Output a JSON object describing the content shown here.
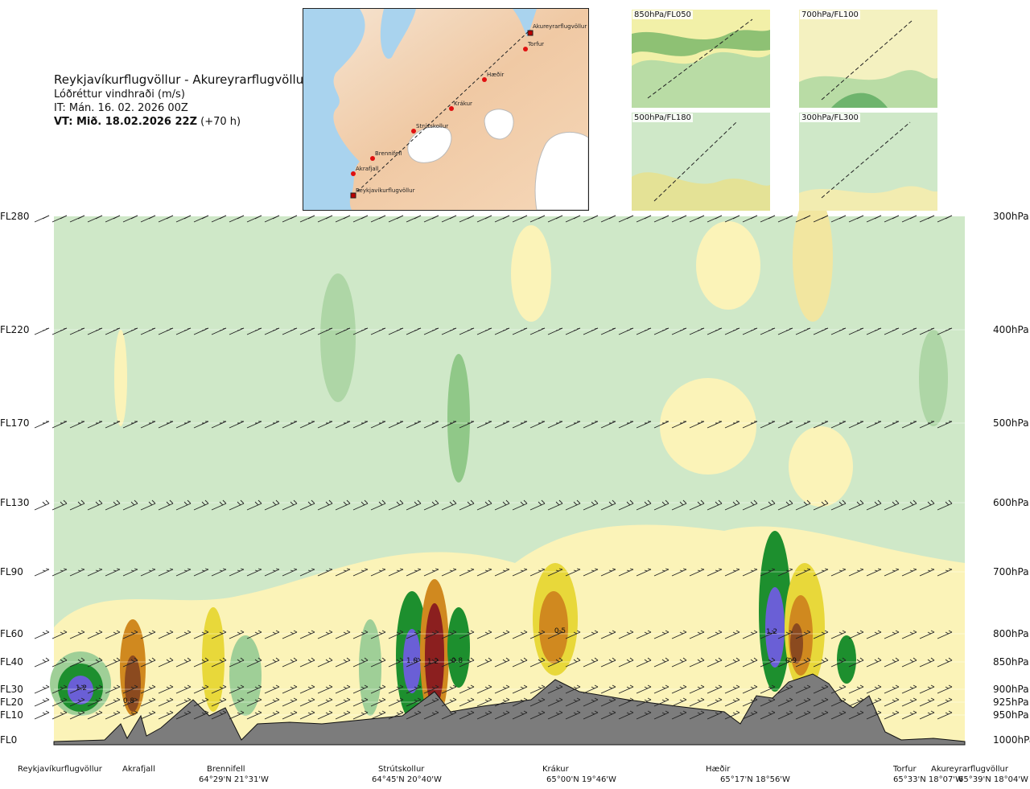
{
  "header": {
    "route_title": "Reykjavíkurflugvöllur - Akureyrarflugvöllur",
    "parameter": "Lóðréttur vindhraði (m/s)",
    "issue_time": "IT: Mán. 16. 02. 2026 00Z",
    "valid_prefix": "VT: Mið. 18.02.2026 22Z",
    "valid_suffix": " (+70 h)"
  },
  "route_map": {
    "points": [
      {
        "name": "Akureyrarflugvöllur"
      },
      {
        "name": "Torfur"
      },
      {
        "name": "Hæðir"
      },
      {
        "name": "Krákur"
      },
      {
        "name": "Strútskollur"
      },
      {
        "name": "Brennifell"
      },
      {
        "name": "Akrafjall"
      },
      {
        "name": "Reykjavíkurflugvöllur"
      }
    ]
  },
  "mini_maps": [
    {
      "label": "850hPa/FL050"
    },
    {
      "label": "700hPa/FL100"
    },
    {
      "label": "500hPa/FL180"
    },
    {
      "label": "300hPa/FL300"
    }
  ],
  "levels": [
    {
      "fl": "FL280",
      "hpa": "300hPa"
    },
    {
      "fl": "FL220",
      "hpa": "400hPa"
    },
    {
      "fl": "FL170",
      "hpa": "500hPa"
    },
    {
      "fl": "FL130",
      "hpa": "600hPa"
    },
    {
      "fl": "FL90",
      "hpa": "700hPa"
    },
    {
      "fl": "FL60",
      "hpa": "800hPa"
    },
    {
      "fl": "FL40",
      "hpa": "850hPa"
    },
    {
      "fl": "FL30",
      "hpa": "900hPa"
    },
    {
      "fl": "FL20",
      "hpa": "925hPa"
    },
    {
      "fl": "FL10",
      "hpa": "950hPa"
    },
    {
      "fl": "FL0",
      "hpa": "1000hPa"
    }
  ],
  "value_labels": [
    "1.2",
    "0.8",
    "1.0",
    "1.2",
    "0.8",
    "0.5",
    "1.2",
    "0.9"
  ],
  "locations": [
    {
      "name": "Reykjavíkurflugvöllur",
      "coord": ""
    },
    {
      "name": "Akrafjall",
      "coord": ""
    },
    {
      "name": "Brennifell",
      "coord": "64°29'N 21°31'W"
    },
    {
      "name": "Strútskollur",
      "coord": "64°45'N 20°40'W"
    },
    {
      "name": "Krákur",
      "coord": "65°00'N 19°46'W"
    },
    {
      "name": "Hæðir",
      "coord": "65°17'N 18°56'W"
    },
    {
      "name": "Torfur",
      "coord": "65°33'N 18°07'W"
    },
    {
      "name": "Akureyrarflugvöllur",
      "coord": "65°39'N 18°04'W"
    }
  ],
  "colors": {
    "weak_down": "#cfe8c8",
    "down": "#9fcf97",
    "strong_down": "#1d8f2e",
    "extreme_down": "#6a5fd6",
    "weak_up": "#fbf3b8",
    "up": "#e8d83a",
    "strong_up": "#d0891f",
    "extreme_up": "#8b1f1f",
    "terrain": "#7c7c7c"
  }
}
